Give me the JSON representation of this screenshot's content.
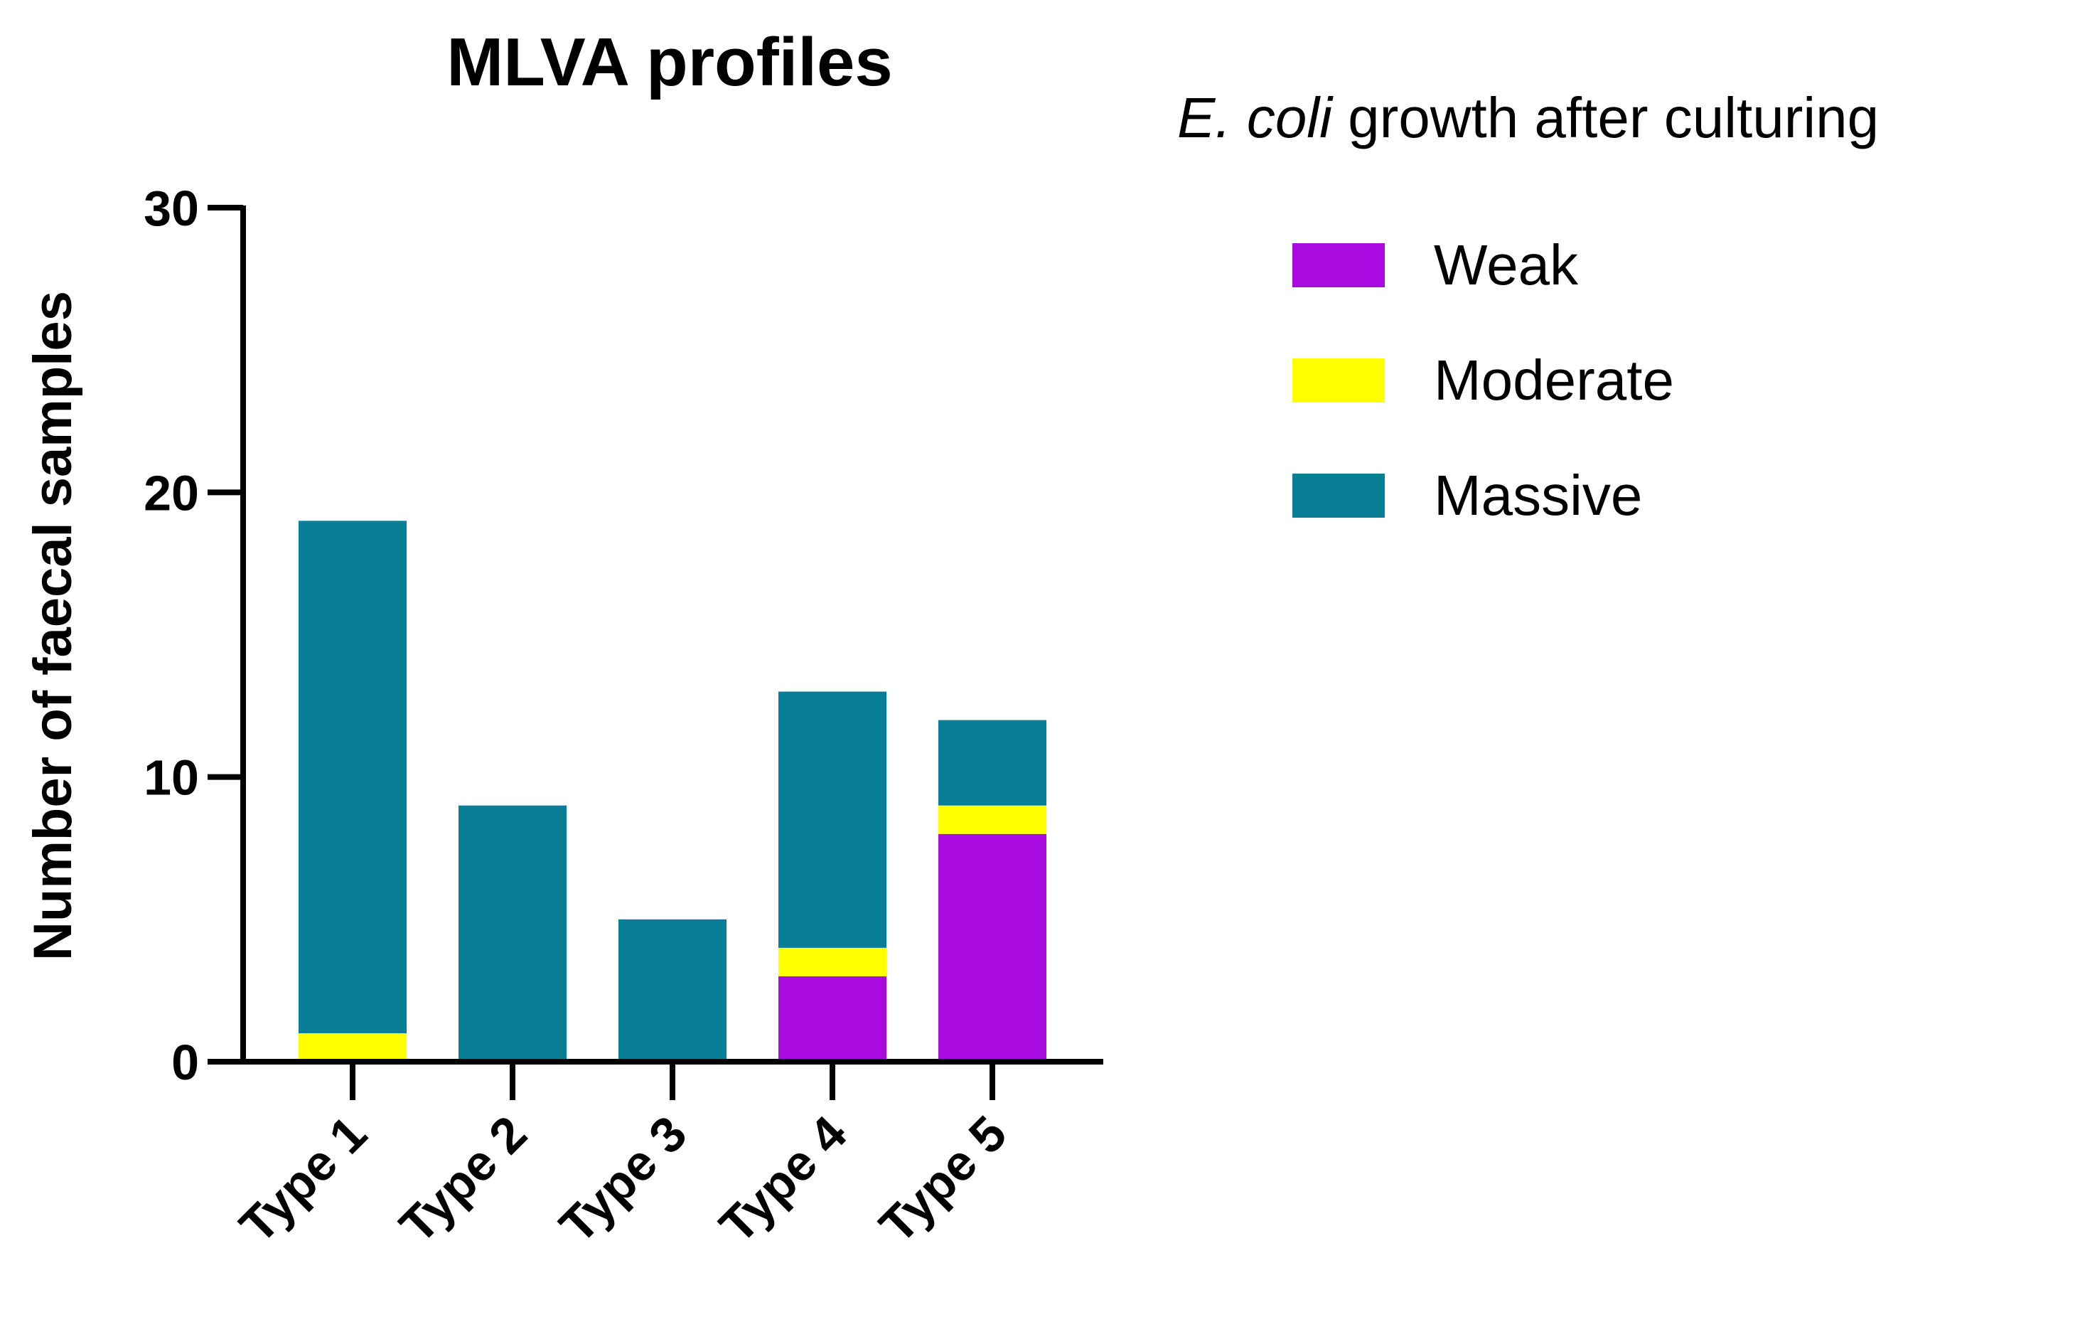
{
  "chart_data": {
    "type": "bar",
    "stacked": true,
    "title": "MLVA profiles",
    "xlabel": "",
    "ylabel": "Number of faecal samples",
    "ylim": [
      0,
      30
    ],
    "yticks": [
      0,
      10,
      20,
      30
    ],
    "categories": [
      "Type 1",
      "Type 2",
      "Type 3",
      "Type 4",
      "Type 5"
    ],
    "series": [
      {
        "name": "Weak",
        "color": "#a80ae0",
        "values": [
          0,
          0,
          0,
          3,
          8
        ]
      },
      {
        "name": "Moderate",
        "color": "#ffff00",
        "values": [
          1,
          0,
          0,
          1,
          1
        ]
      },
      {
        "name": "Massive",
        "color": "#087f96",
        "values": [
          18,
          9,
          5,
          9,
          3
        ]
      }
    ],
    "legend": {
      "title_italic": "E. coli",
      "title_rest": " growth after culturing",
      "position": "right"
    }
  }
}
